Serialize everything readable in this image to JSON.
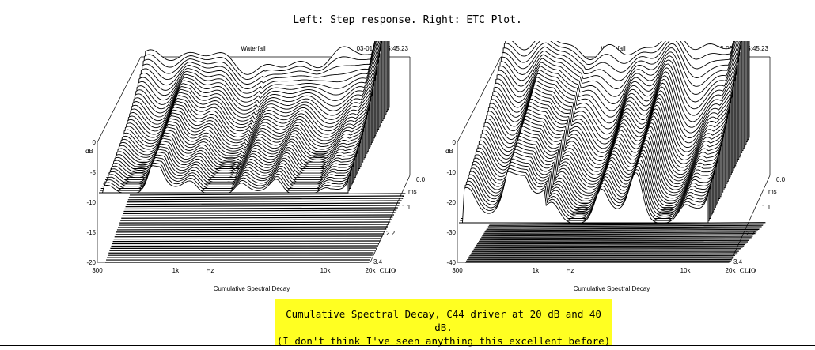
{
  "caption": "Left: Step response. Right: ETC Plot.",
  "note_lines": [
    "Cumulative Spectral Decay, C44 driver at 20 dB and 40 dB.",
    "(I don't think I've seen anything this excellent before)"
  ],
  "chart_data": [
    {
      "type": "waterfall",
      "title": "Waterfall",
      "timestamp": "03-01-09 15:45.23",
      "xlabel": "Cumulative Spectral Decay",
      "x_unit": "Hz",
      "x_ticks": [
        "300",
        "1k",
        "10k",
        "20k"
      ],
      "y_unit": "dB",
      "y_ticks": [
        "0",
        "-5",
        "-10",
        "-15",
        "-20"
      ],
      "ylim": [
        -20,
        0
      ],
      "z_unit": "ms",
      "z_ticks": [
        "0.0",
        "1.1",
        "2.2",
        "3.4"
      ],
      "brand": "CLIO",
      "slices": 40
    },
    {
      "type": "waterfall",
      "title": "Waterfall",
      "timestamp": "03-01-09 15:45.23",
      "xlabel": "Cumulative Spectral Decay",
      "x_unit": "Hz",
      "x_ticks": [
        "300",
        "1k",
        "10k",
        "20k"
      ],
      "y_unit": "dB",
      "y_ticks": [
        "0",
        "-10",
        "-20",
        "-30",
        "-40"
      ],
      "ylim": [
        -40,
        0
      ],
      "z_unit": "ms",
      "z_ticks": [
        "0.0",
        "1.1",
        "2.2",
        "3.4"
      ],
      "brand": "CLIO",
      "slices": 40
    }
  ]
}
